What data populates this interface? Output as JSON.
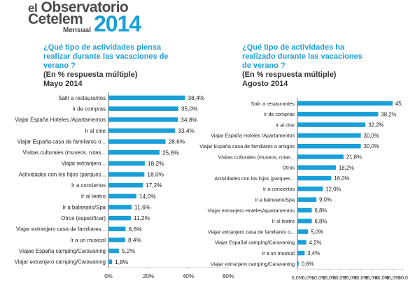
{
  "logo": {
    "line1_prefix": "el",
    "line1_main": "Observatorio",
    "line2": "Cetelem",
    "line3": "Mensual",
    "year": "2014",
    "year_color": "#1a9fd8"
  },
  "bar_color": "#1a9fd8",
  "heading_color": "#1a9fd8",
  "chart_data": [
    {
      "type": "bar",
      "orientation": "horizontal",
      "question_lines": [
        "¿Qué tipo de actividades piensa",
        "realizar durante las vacaciones de",
        "verano ?"
      ],
      "subtitle_lines": [
        "(En % respuesta múltiple)",
        "Mayo 2014"
      ],
      "categories": [
        "Salir a restaurantes",
        "Ir de compras",
        "Viajar España Hoteles /Apartamentos",
        "Ir al cine",
        "Viajar España casa de familiares o...",
        "Visitas culturales (museos, rutas...",
        "Viajar extranjero...",
        "Actividades con los hijos (parques...",
        "Ir a conciertos",
        "Ir al teatro",
        "Ir a balneario/Spa",
        "Otros (especificar)",
        "Viajar extranjero casa de familiares...",
        "Ir a un musical",
        "Viajae España camping/Caravaning",
        "Viajar extranjero camping/Caravaning"
      ],
      "values": [
        38.4,
        35.0,
        34.8,
        33.4,
        28.6,
        25.6,
        18.2,
        18.0,
        17.2,
        14.0,
        11.6,
        11.2,
        8.6,
        8.4,
        5.2,
        1.8
      ],
      "value_labels": [
        "38,4%",
        "35,0%",
        "34,8%",
        "33,4%",
        "28,6%",
        "25,6%",
        "18,2%",
        "18,0%",
        "17,2%",
        "14,0%",
        "11,6%",
        "11,2%",
        "8,6%",
        "8,4%",
        "5,2%",
        "1,8%"
      ],
      "xlim": [
        0,
        60
      ],
      "xticks": [
        0,
        20,
        40,
        60
      ],
      "xtick_labels": [
        "0%",
        "20%",
        "40%",
        "60%"
      ],
      "grid": false,
      "xlabel": "",
      "ylabel": ""
    },
    {
      "type": "bar",
      "orientation": "horizontal",
      "question_lines": [
        "¿Qué tipo de actividades ha",
        "realizado durante las vacaciones",
        "de verano ?"
      ],
      "subtitle_lines": [
        "(En % respuesta múltiple)",
        "Agosto 2014"
      ],
      "categories": [
        "Salir a restaurantes",
        "Ir de compras",
        "Ir al cine",
        "Viajar España Hoteles /Apartamentos",
        "Viajar España casa de familiares o  amigos",
        "Visitas culturales (museos, rutas...",
        "Otros",
        "Actividades con los hijos (parques...",
        "Ir a conciertos",
        "Ir a balneario/Spa",
        "Viajar extranjero Hoteles/apartamentos",
        "Ir al teatro",
        "Viajar extranjero casa de familiares o...",
        "Viajar Españal camping/Caravaning",
        "Ir a un musical",
        "Viajar extranjero camping/Caravaning"
      ],
      "values": [
        45.0,
        38.2,
        32.2,
        30.0,
        30.0,
        21.8,
        18.2,
        16.0,
        12.0,
        9.0,
        6.8,
        6.8,
        5.0,
        4.2,
        3.4,
        0.6
      ],
      "value_labels": [
        "45,",
        "38,2%",
        "32,2%",
        "30,0%",
        "30,0%",
        "21,8%",
        "18,2%",
        "16,0%",
        "12,0%",
        "9,0%",
        "6,8%",
        "6,8%",
        "5,0%",
        "4,2%",
        "3,4%",
        "0,6%"
      ],
      "xlim": [
        0,
        50
      ],
      "xticks": [
        0,
        5,
        10,
        15,
        20,
        25,
        30,
        35,
        40,
        45,
        50
      ],
      "xtick_labels": [
        "0,0%",
        "5,0%",
        "10,0%",
        "15,0%",
        "20,0%",
        "25,0%",
        "30,0%",
        "35,0%",
        "40,0%",
        "45,0%",
        "50,0"
      ],
      "grid": false,
      "xlabel": "",
      "ylabel": ""
    }
  ]
}
